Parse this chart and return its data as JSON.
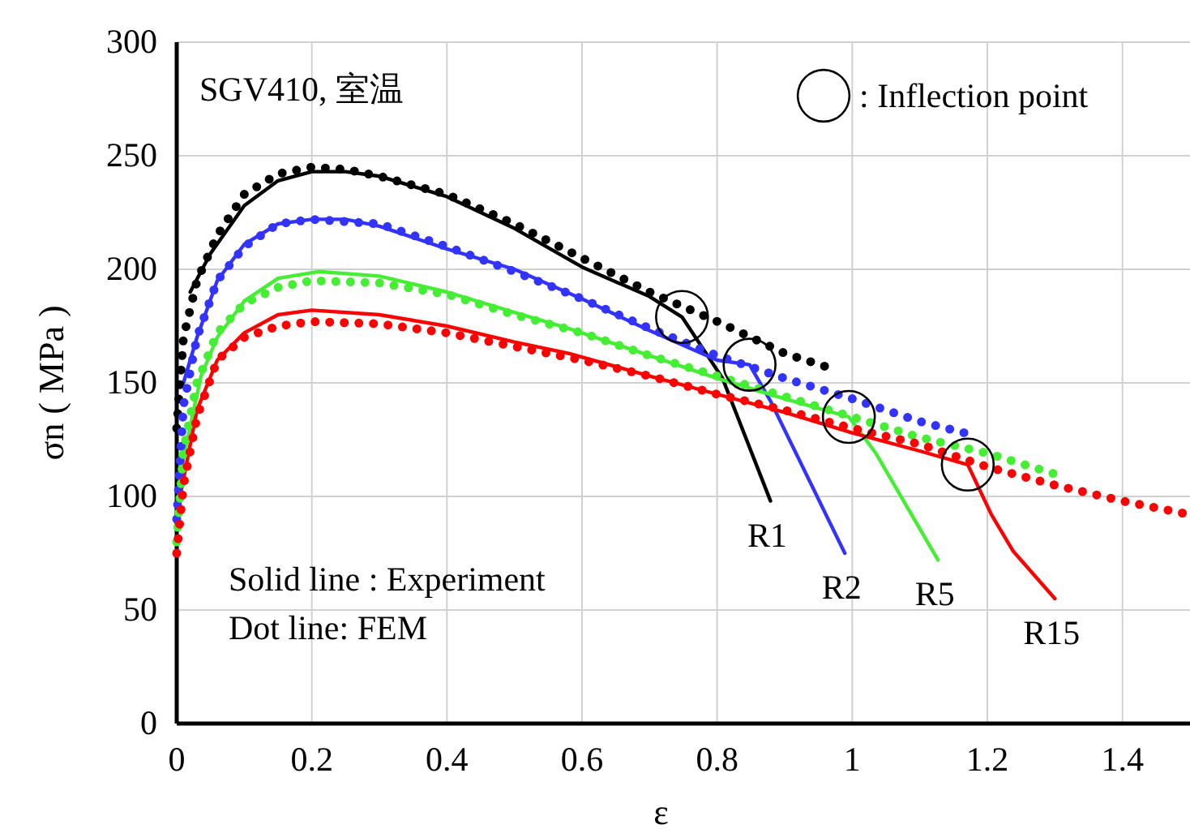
{
  "chart_data": {
    "type": "line",
    "xlabel": "ε",
    "ylabel": "σn ( MPa )",
    "xlim": [
      0,
      1.5
    ],
    "ylim": [
      0,
      300
    ],
    "xticks": [
      0,
      0.2,
      0.4,
      0.6,
      0.8,
      1,
      1.2,
      1.4
    ],
    "yticks": [
      0,
      50,
      100,
      150,
      200,
      250,
      300
    ],
    "grid": true,
    "marker": "none",
    "annotations": [
      "SGV410, 室温",
      "Solid line : Experiment",
      "Dot line: FEM",
      ": Inflection point"
    ],
    "series": [
      {
        "name": "R1",
        "color": "#000000",
        "line_style": "solid",
        "x": [
          0.02,
          0.05,
          0.1,
          0.15,
          0.2,
          0.25,
          0.3,
          0.4,
          0.5,
          0.6,
          0.7,
          0.748,
          0.808,
          0.879
        ],
        "values": [
          190,
          207,
          228,
          239,
          243,
          243,
          241,
          232,
          218,
          201,
          188,
          179,
          152,
          98
        ]
      },
      {
        "name": "R2",
        "color": "#3333ff",
        "line_style": "solid",
        "x": [
          0.01,
          0.03,
          0.06,
          0.1,
          0.15,
          0.2,
          0.25,
          0.3,
          0.4,
          0.5,
          0.6,
          0.7,
          0.8,
          0.848,
          0.879,
          0.989
        ],
        "values": [
          150,
          170,
          195,
          211,
          220,
          222,
          222,
          219,
          209,
          200,
          187,
          173,
          160,
          158,
          142,
          75
        ]
      },
      {
        "name": "R5",
        "color": "#44ee33",
        "line_style": "solid",
        "x": [
          0.005,
          0.036,
          0.06,
          0.1,
          0.15,
          0.21,
          0.3,
          0.4,
          0.5,
          0.58,
          0.7,
          0.8,
          0.9,
          0.995,
          1.035,
          1.127
        ],
        "values": [
          110,
          153,
          170,
          186,
          196,
          199,
          197,
          190,
          181,
          174,
          162,
          152,
          143,
          135,
          119,
          72
        ]
      },
      {
        "name": "R15",
        "color": "#ff0000",
        "line_style": "solid",
        "x": [
          0.005,
          0.03,
          0.06,
          0.1,
          0.15,
          0.2,
          0.3,
          0.4,
          0.5,
          0.58,
          0.7,
          0.8,
          0.9,
          1.0,
          1.1,
          1.171,
          1.206,
          1.238,
          1.3
        ],
        "values": [
          100,
          138,
          160,
          172,
          180,
          182,
          180,
          175,
          168,
          163,
          153,
          145,
          137,
          128,
          120,
          114,
          92,
          76,
          55
        ]
      },
      {
        "color": "#000000",
        "line_style": "dotted",
        "x": [
          0,
          0.01,
          0.03,
          0.06,
          0.1,
          0.15,
          0.2,
          0.25,
          0.3,
          0.4,
          0.5,
          0.6,
          0.7,
          0.808,
          0.9,
          0.973
        ],
        "values": [
          130,
          170,
          195,
          215,
          233,
          242,
          245,
          244,
          241,
          233,
          220,
          205,
          190,
          176,
          163,
          156
        ]
      },
      {
        "color": "#3333ff",
        "line_style": "dotted",
        "x": [
          0,
          0.01,
          0.03,
          0.06,
          0.1,
          0.15,
          0.2,
          0.3,
          0.4,
          0.5,
          0.6,
          0.7,
          0.8,
          0.9,
          1.0,
          1.1,
          1.166
        ],
        "values": [
          90,
          140,
          170,
          195,
          210,
          220,
          222,
          220,
          210,
          199,
          187,
          174,
          162,
          152,
          143,
          133,
          128
        ]
      },
      {
        "color": "#44ee33",
        "line_style": "dotted",
        "x": [
          0,
          0.01,
          0.03,
          0.06,
          0.1,
          0.15,
          0.2,
          0.3,
          0.4,
          0.5,
          0.6,
          0.7,
          0.8,
          0.9,
          1.0,
          1.1,
          1.2,
          1.31
        ],
        "values": [
          80,
          120,
          150,
          172,
          185,
          192,
          195,
          194,
          189,
          180,
          172,
          162,
          153,
          144,
          135,
          126,
          119,
          109
        ]
      },
      {
        "color": "#ff0000",
        "line_style": "dotted",
        "x": [
          0,
          0.01,
          0.03,
          0.06,
          0.1,
          0.15,
          0.2,
          0.3,
          0.4,
          0.5,
          0.6,
          0.7,
          0.8,
          0.9,
          1.0,
          1.1,
          1.2,
          1.3,
          1.4,
          1.5
        ],
        "values": [
          75,
          105,
          135,
          160,
          170,
          175,
          177,
          176,
          172,
          166,
          160,
          153,
          145,
          138,
          130,
          123,
          113,
          105,
          98,
          92
        ]
      }
    ]
  }
}
